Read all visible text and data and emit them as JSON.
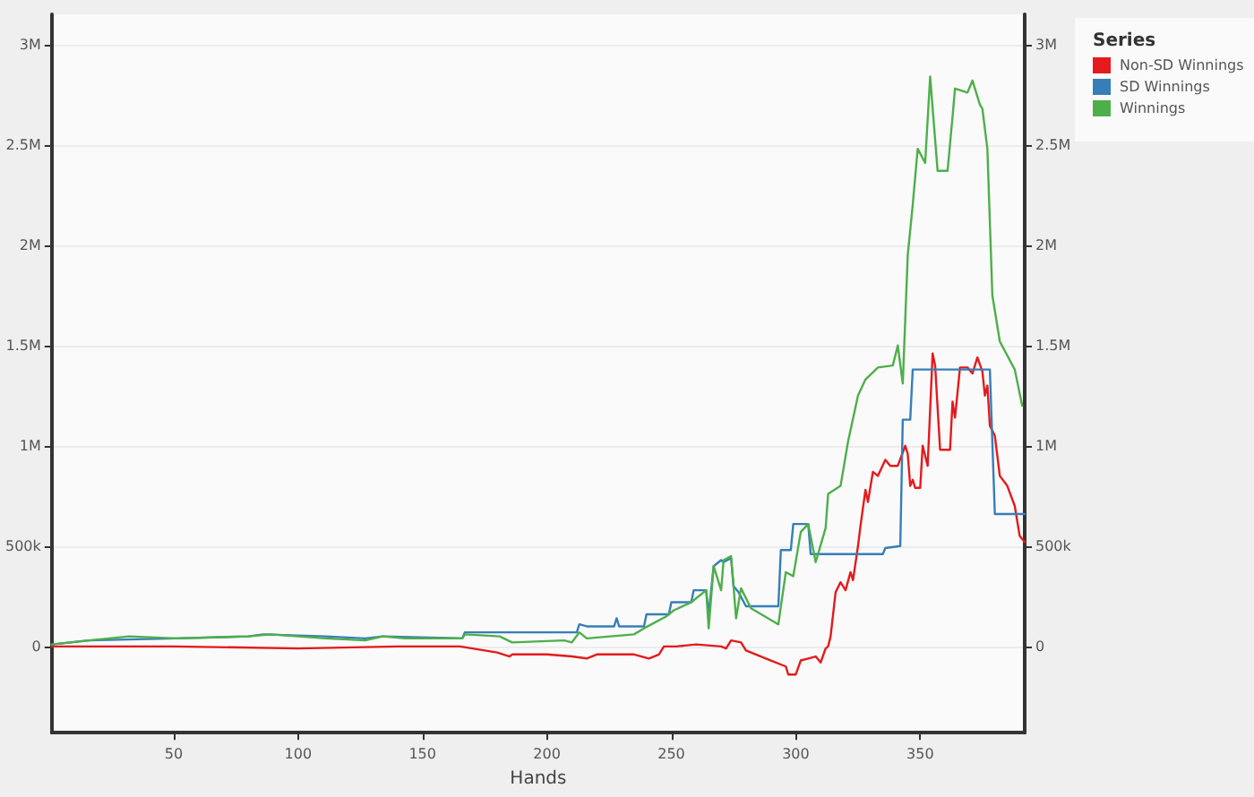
{
  "chart_data": {
    "type": "line",
    "xlabel": "Hands",
    "legend_title": "Series",
    "legend": "top right",
    "grid": "y",
    "marker": "none",
    "line_style": "solid",
    "xlim": [
      1,
      392
    ],
    "xticks": [
      50,
      100,
      150,
      200,
      250,
      300,
      350
    ],
    "ylim": [
      -430000,
      3150000
    ],
    "yticks": [
      {
        "value": 0,
        "label": "0"
      },
      {
        "value": 500000,
        "label": "500k"
      },
      {
        "value": 1000000,
        "label": "1M"
      },
      {
        "value": 1500000,
        "label": "1.5M"
      },
      {
        "value": 2000000,
        "label": "2M"
      },
      {
        "value": 2500000,
        "label": "2.5M"
      },
      {
        "value": 3000000,
        "label": "3M"
      }
    ],
    "y2lim": [
      -430000,
      3150000
    ],
    "y2ticks": [
      {
        "value": 0,
        "label": "0"
      },
      {
        "value": 500000,
        "label": "500k"
      },
      {
        "value": 1000000,
        "label": "1M"
      },
      {
        "value": 1500000,
        "label": "1.5M"
      },
      {
        "value": 2000000,
        "label": "2M"
      },
      {
        "value": 2500000,
        "label": "2.5M"
      },
      {
        "value": 3000000,
        "label": "3M"
      }
    ],
    "series": [
      {
        "name": "Non-SD Winnings",
        "color": "#e41a1c",
        "x": [
          1,
          50,
          100,
          140,
          165,
          180,
          185,
          186,
          200,
          210,
          216,
          220,
          235,
          241,
          245,
          247,
          252,
          260,
          270,
          272,
          274,
          278,
          280,
          290,
          296,
          297,
          300,
          302,
          305,
          308,
          310,
          312,
          313,
          314,
          316,
          318,
          320,
          322,
          323,
          325,
          326,
          328,
          329,
          331,
          333,
          336,
          338,
          341,
          344,
          345,
          346,
          347,
          348,
          350,
          351,
          353,
          355,
          356,
          358,
          362,
          363,
          364,
          366,
          369,
          371,
          373,
          375,
          376,
          377,
          378,
          380,
          382,
          385,
          388,
          390,
          392
        ],
        "values": [
          0,
          0,
          -10000,
          0,
          0,
          -30000,
          -50000,
          -40000,
          -40000,
          -50000,
          -60000,
          -40000,
          -40000,
          -60000,
          -40000,
          0,
          0,
          10000,
          0,
          -10000,
          30000,
          20000,
          -20000,
          -70000,
          -100000,
          -140000,
          -140000,
          -70000,
          -60000,
          -50000,
          -80000,
          -10000,
          0,
          50000,
          270000,
          320000,
          280000,
          370000,
          330000,
          500000,
          600000,
          780000,
          720000,
          870000,
          850000,
          930000,
          900000,
          900000,
          1000000,
          960000,
          800000,
          830000,
          790000,
          790000,
          1000000,
          900000,
          1460000,
          1400000,
          980000,
          980000,
          1220000,
          1140000,
          1390000,
          1390000,
          1360000,
          1440000,
          1370000,
          1250000,
          1300000,
          1100000,
          1050000,
          850000,
          800000,
          700000,
          550000,
          520000
        ]
      },
      {
        "name": "SD Winnings",
        "color": "#377eb8",
        "x": [
          1,
          16,
          51,
          80,
          86,
          111,
          127,
          134,
          166,
          167,
          212,
          213,
          216,
          227,
          228,
          229,
          239,
          240,
          249,
          250,
          258,
          259,
          264,
          265,
          267,
          270,
          271,
          274,
          275,
          277,
          280,
          293,
          294,
          298,
          299,
          305,
          306,
          335,
          336,
          342,
          343,
          346,
          347,
          378,
          380,
          392
        ],
        "values": [
          10000,
          30000,
          40000,
          50000,
          60000,
          50000,
          40000,
          50000,
          40000,
          70000,
          70000,
          110000,
          100000,
          100000,
          140000,
          100000,
          100000,
          160000,
          160000,
          220000,
          220000,
          280000,
          280000,
          160000,
          400000,
          430000,
          420000,
          440000,
          300000,
          270000,
          200000,
          200000,
          480000,
          480000,
          610000,
          610000,
          460000,
          460000,
          490000,
          500000,
          1130000,
          1130000,
          1380000,
          1380000,
          660000,
          660000
        ]
      },
      {
        "name": "Winnings",
        "color": "#4daf4a",
        "x": [
          1,
          16,
          32,
          51,
          80,
          89,
          111,
          127,
          134,
          143,
          166,
          167,
          181,
          186,
          207,
          210,
          213,
          216,
          235,
          239,
          248,
          251,
          258,
          264,
          265,
          267,
          270,
          271,
          274,
          275,
          276,
          278,
          282,
          293,
          296,
          299,
          302,
          305,
          308,
          312,
          313,
          318,
          321,
          325,
          328,
          333,
          339,
          341,
          343,
          345,
          347,
          349,
          352,
          354,
          357,
          361,
          363,
          364,
          369,
          371,
          374,
          375,
          377,
          379,
          382,
          388,
          391
        ],
        "values": [
          10000,
          30000,
          50000,
          40000,
          50000,
          60000,
          40000,
          30000,
          50000,
          40000,
          40000,
          60000,
          50000,
          20000,
          30000,
          20000,
          70000,
          40000,
          60000,
          90000,
          150000,
          180000,
          220000,
          280000,
          90000,
          400000,
          280000,
          430000,
          450000,
          300000,
          140000,
          290000,
          190000,
          110000,
          370000,
          350000,
          570000,
          610000,
          420000,
          590000,
          760000,
          800000,
          1020000,
          1250000,
          1330000,
          1390000,
          1400000,
          1500000,
          1310000,
          1950000,
          2200000,
          2480000,
          2410000,
          2840000,
          2370000,
          2370000,
          2640000,
          2780000,
          2760000,
          2820000,
          2700000,
          2680000,
          2480000,
          1750000,
          1520000,
          1380000,
          1200000
        ]
      }
    ]
  }
}
